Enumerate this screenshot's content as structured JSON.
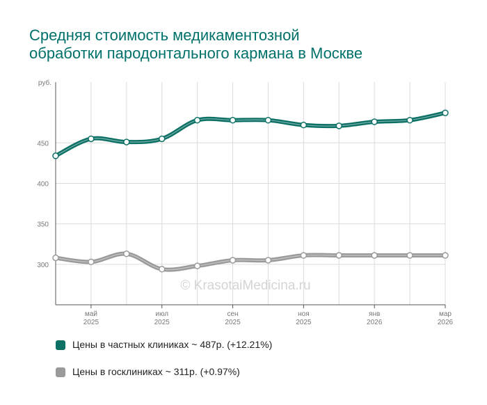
{
  "header": {
    "title_line1": "Средняя стоимость медикаментозной",
    "title_line2": "обработки пародонтального кармана в Москве"
  },
  "watermark": "© KrasotaiMedicina.ru",
  "colors": {
    "private": "#0d7166",
    "public": "#9a9a9a",
    "title": "#00716a",
    "grid": "#dcdcdc"
  },
  "chart_data": {
    "type": "line",
    "title": "Средняя стоимость медикаментозной обработки пародонтального кармана в Москве",
    "ylabel": "руб.",
    "ylim": [
      250,
      525
    ],
    "yticks": [
      300,
      350,
      400,
      450
    ],
    "x_points": 12,
    "x_tick_labels": [
      {
        "index": 1,
        "month": "май",
        "year": "2025"
      },
      {
        "index": 3,
        "month": "июл",
        "year": "2025"
      },
      {
        "index": 5,
        "month": "сен",
        "year": "2025"
      },
      {
        "index": 7,
        "month": "ноя",
        "year": "2025"
      },
      {
        "index": 9,
        "month": "янв",
        "year": "2026"
      },
      {
        "index": 11,
        "month": "мар",
        "year": "2026"
      }
    ],
    "series": [
      {
        "name": "Цены в частных клиниках",
        "key": "private",
        "values": [
          434,
          455,
          451,
          455,
          478,
          478,
          478,
          472,
          471,
          476,
          478,
          487
        ]
      },
      {
        "name": "Цены в госклиниках",
        "key": "public",
        "values": [
          308,
          303,
          313,
          294,
          298,
          305,
          305,
          311,
          311,
          311,
          311,
          311
        ]
      }
    ]
  },
  "legend": {
    "items": [
      {
        "label": "Цены в частных клиниках ~ 487р. (+12.21%)",
        "color": "#0d7166"
      },
      {
        "label": "Цены в госклиниках ~ 311р. (+0.97%)",
        "color": "#9a9a9a"
      }
    ]
  }
}
